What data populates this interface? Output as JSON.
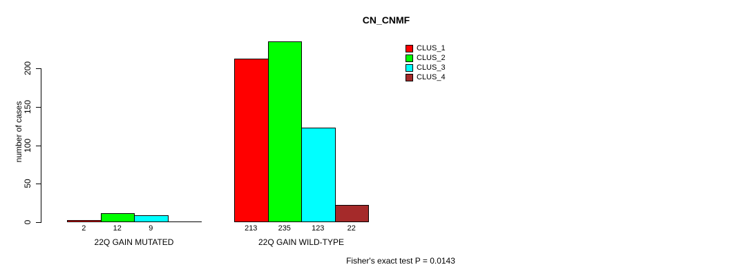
{
  "chart_data": {
    "type": "bar",
    "title": "CN_CNMF",
    "xlabel": "",
    "ylabel": "number of cases",
    "ylim": [
      0,
      200
    ],
    "yticks": [
      0,
      50,
      100,
      150,
      200
    ],
    "grid": false,
    "legend_position": "top-right",
    "categories": [
      "22Q GAIN MUTATED",
      "22Q GAIN WILD-TYPE"
    ],
    "series": [
      {
        "name": "CLUS_1",
        "color": "#ff0000",
        "values": [
          2,
          213
        ]
      },
      {
        "name": "CLUS_2",
        "color": "#00ff00",
        "values": [
          12,
          235
        ]
      },
      {
        "name": "CLUS_3",
        "color": "#00ffff",
        "values": [
          9,
          123
        ]
      },
      {
        "name": "CLUS_4",
        "color": "#a52a2a",
        "values": [
          0,
          22
        ]
      }
    ],
    "bar_labels": [
      [
        "2",
        "12",
        "9",
        ""
      ],
      [
        "213",
        "235",
        "123",
        "22"
      ]
    ],
    "annotation": "Fisher's exact test P = 0.0143"
  },
  "colors": {
    "background": "#ffffff",
    "axis": "#000000",
    "text": "#000000"
  }
}
